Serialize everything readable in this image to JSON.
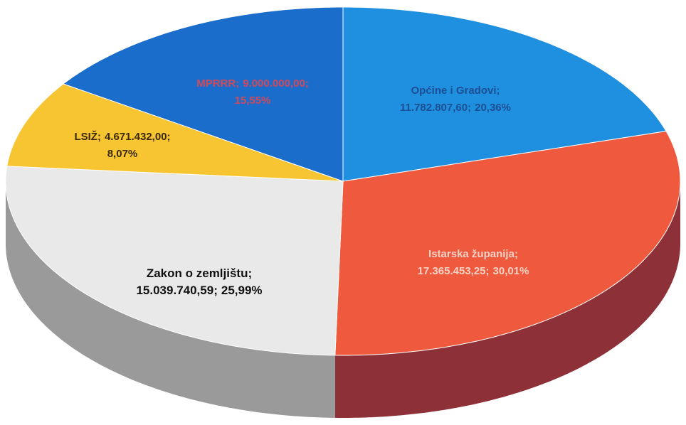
{
  "chart_data": {
    "type": "pie",
    "categories": [
      "Općine i Gradovi",
      "Istarska županija",
      "Zakon o zemljištu",
      "LSIŽ",
      "MPRRR"
    ],
    "values": [
      11782807.6,
      17365453.25,
      15039740.59,
      4671432.0,
      9000000.0
    ],
    "value_labels": [
      "11.782.807,60",
      "17.365.453,25",
      "15.039.740,59",
      "4.671.432,00",
      "9.000.000,00"
    ],
    "percentages": [
      20.36,
      30.01,
      25.99,
      8.07,
      15.55
    ],
    "percentage_labels": [
      "20,36%",
      "30,01%",
      "25,99%",
      "8,07%",
      "15,55%"
    ],
    "separator": ";",
    "colors": [
      "#1f8fe0",
      "#ef5a3e",
      "#e9e9e9",
      "#f7c531",
      "#1b6dcb"
    ],
    "side_colors": [
      "#14609a",
      "#8e3038",
      "#9a9a9a",
      "#a88420",
      "#124a8c"
    ]
  }
}
